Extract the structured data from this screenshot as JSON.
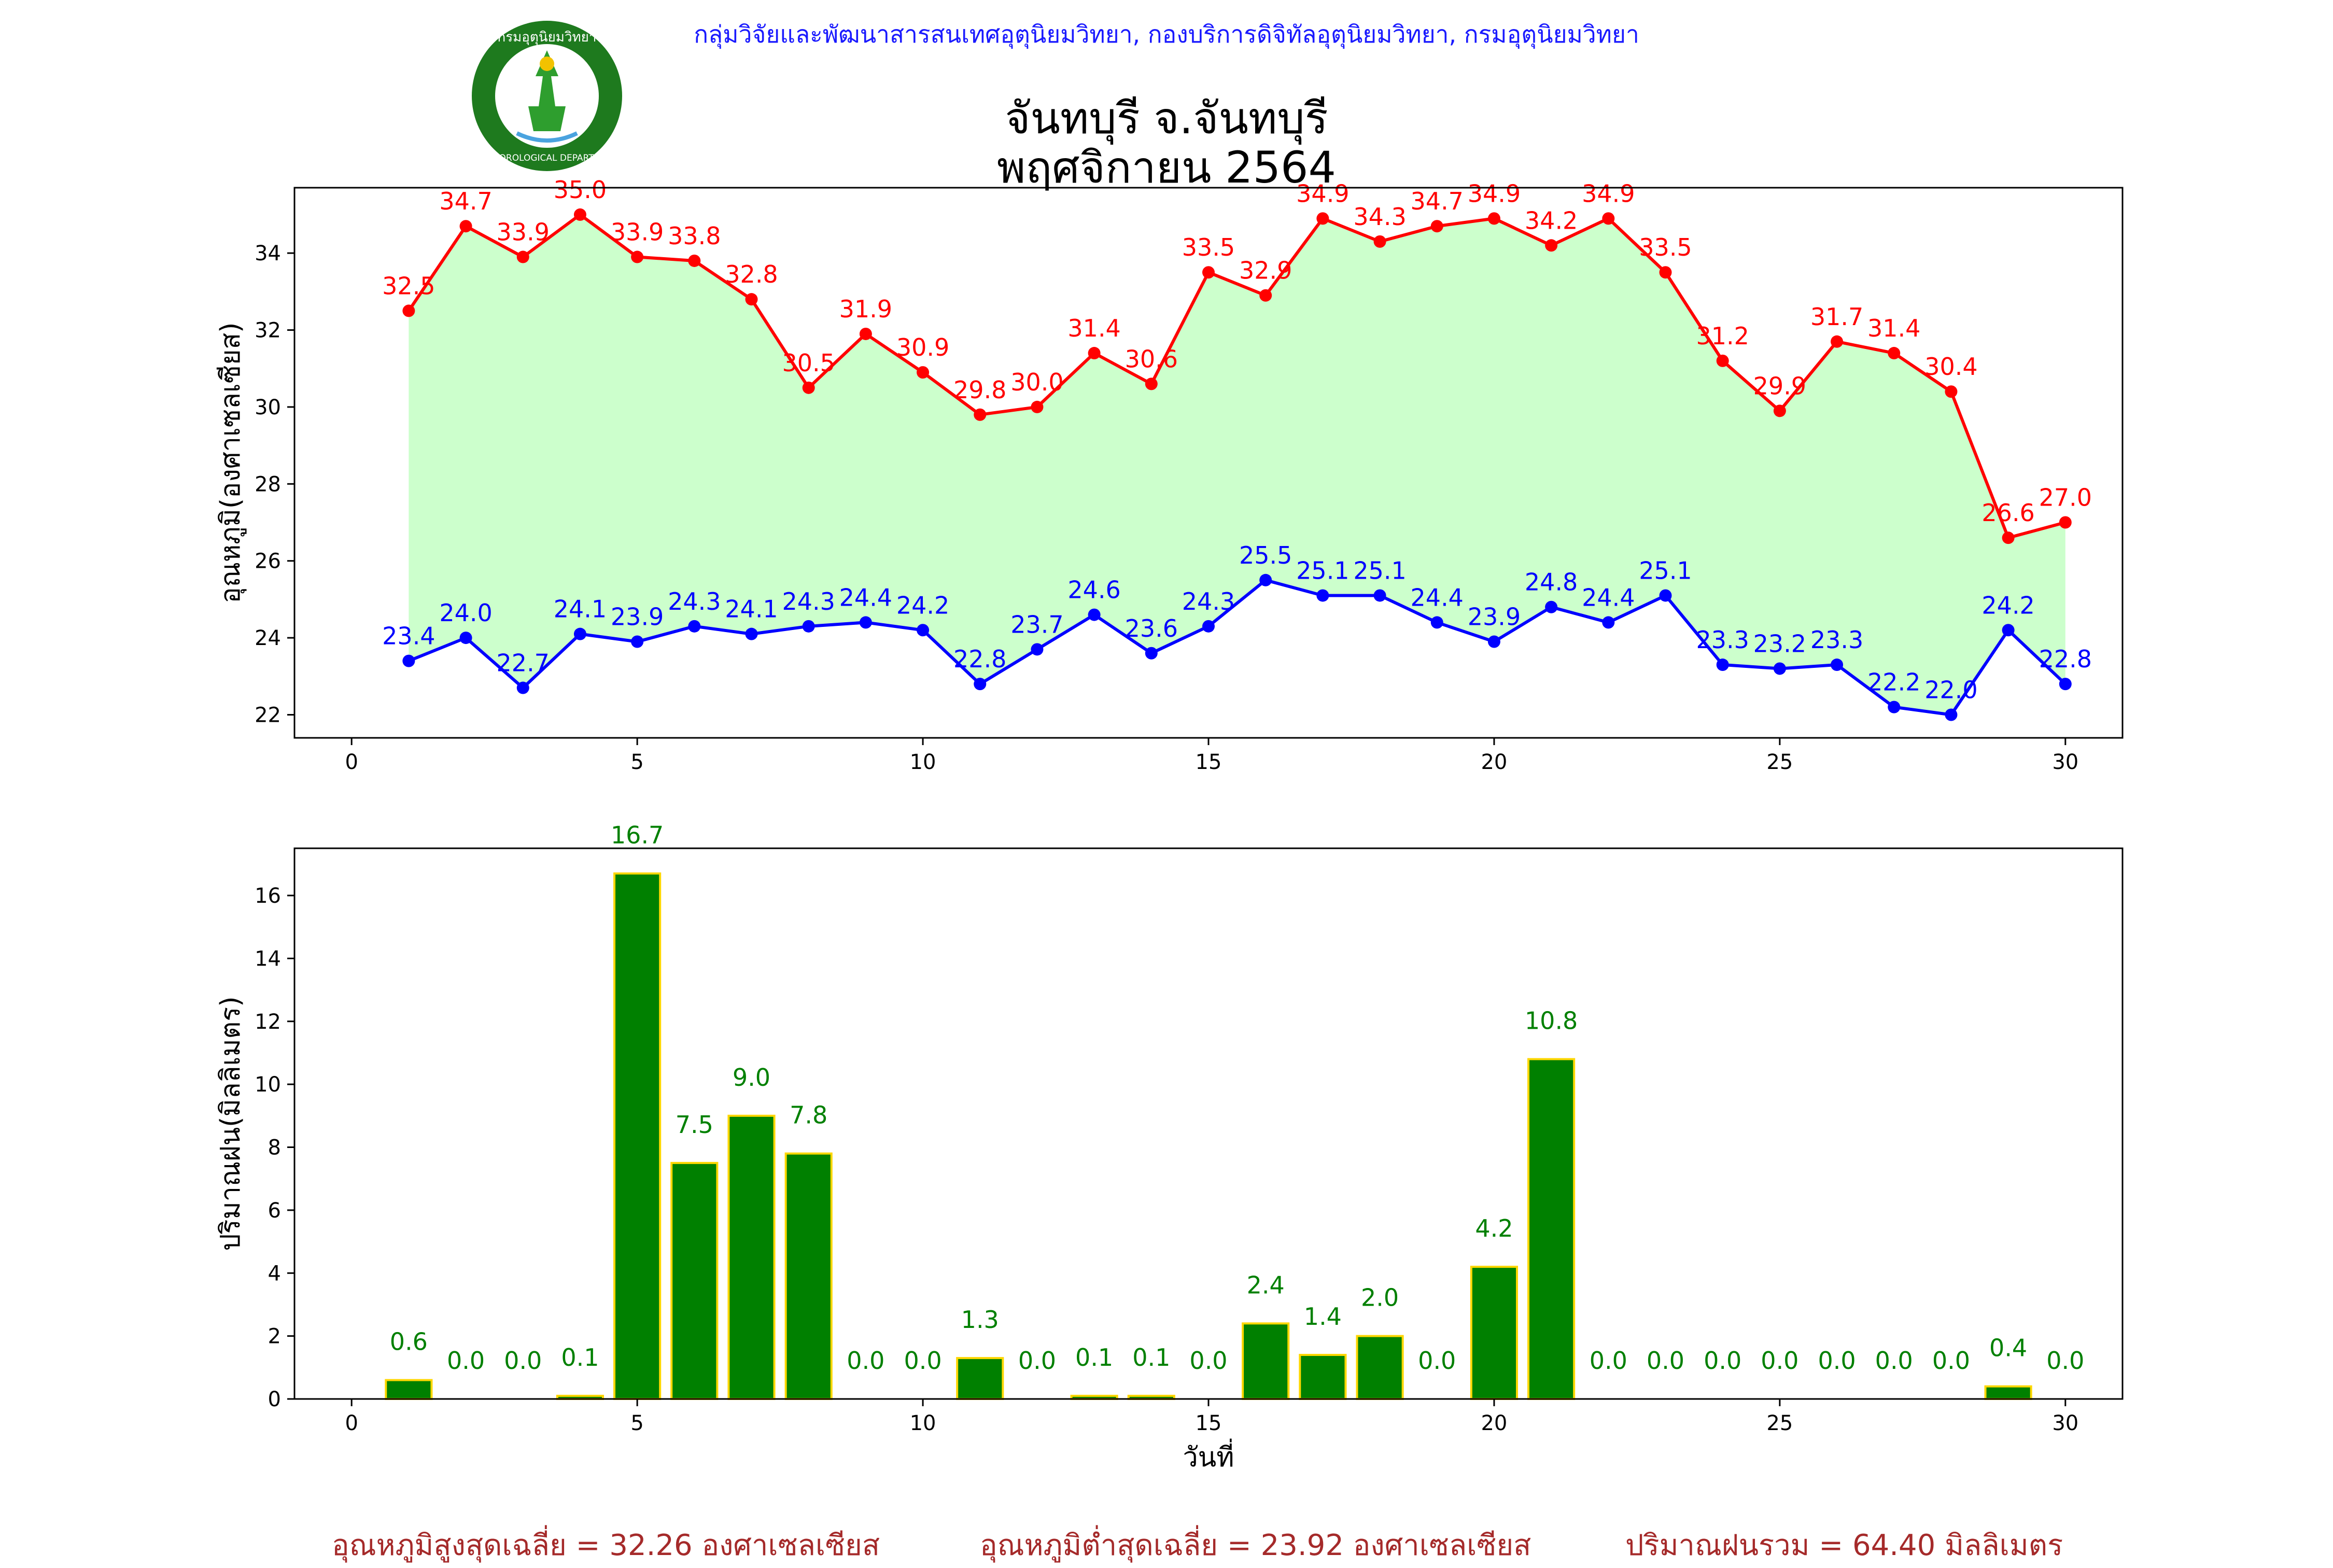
{
  "header": {
    "credit": "กลุ่มวิจัยและพัฒนาสารสนเทศอุตุนิยมวิทยา, กองบริการดิจิทัลอุตุนิยมวิทยา, กรมอุตุนิยมวิทยา",
    "title_line1": "จันทบุรี จ.จันทบุรี",
    "title_line2": "พฤศจิกายน 2564",
    "logo_text_top": "กรมอุตุนิยมวิทยา",
    "logo_text_bottom": "METEOROLOGICAL DEPARTMENT"
  },
  "colors": {
    "max_line": "#ff0000",
    "min_line": "#0000ff",
    "fill": "#ccffcc",
    "bar_fill": "#008000",
    "bar_edge": "#ffd700",
    "bar_label": "#008000",
    "footer": "#a52a2a",
    "credit": "#1a1aff"
  },
  "chart_data": [
    {
      "type": "line",
      "ylabel": "อุณหภูมิ(องศาเซลเซียส)",
      "xlim": [
        -1,
        31
      ],
      "ylim": [
        21.4,
        35.7
      ],
      "xticks": [
        0,
        5,
        10,
        15,
        20,
        25,
        30
      ],
      "yticks": [
        22,
        24,
        26,
        28,
        30,
        32,
        34
      ],
      "x": [
        1,
        2,
        3,
        4,
        5,
        6,
        7,
        8,
        9,
        10,
        11,
        12,
        13,
        14,
        15,
        16,
        17,
        18,
        19,
        20,
        21,
        22,
        23,
        24,
        25,
        26,
        27,
        28,
        29,
        30
      ],
      "series": [
        {
          "values": [
            32.5,
            34.7,
            33.9,
            35.0,
            33.9,
            33.8,
            32.8,
            30.5,
            31.9,
            30.9,
            29.8,
            30.0,
            31.4,
            30.6,
            33.5,
            32.9,
            34.9,
            34.3,
            34.7,
            34.9,
            34.2,
            34.9,
            33.5,
            31.2,
            29.9,
            31.7,
            31.4,
            30.4,
            26.6,
            27.0
          ]
        },
        {
          "values": [
            23.4,
            24.0,
            22.7,
            24.1,
            23.9,
            24.3,
            24.1,
            24.3,
            24.4,
            24.2,
            22.8,
            23.7,
            24.6,
            23.6,
            24.3,
            25.5,
            25.1,
            25.1,
            24.4,
            23.9,
            24.8,
            24.4,
            25.1,
            23.3,
            23.2,
            23.3,
            22.2,
            22.0,
            24.2,
            22.8
          ]
        }
      ]
    },
    {
      "type": "bar",
      "xlabel": "วันที่",
      "ylabel": "ปริมาณฝน(มิลลิเมตร)",
      "xlim": [
        -1,
        31
      ],
      "ylim": [
        0,
        17.5
      ],
      "xticks": [
        0,
        5,
        10,
        15,
        20,
        25,
        30
      ],
      "yticks": [
        0,
        2,
        4,
        6,
        8,
        10,
        12,
        14,
        16
      ],
      "x": [
        1,
        2,
        3,
        4,
        5,
        6,
        7,
        8,
        9,
        10,
        11,
        12,
        13,
        14,
        15,
        16,
        17,
        18,
        19,
        20,
        21,
        22,
        23,
        24,
        25,
        26,
        27,
        28,
        29,
        30
      ],
      "values": [
        0.6,
        0.0,
        0.0,
        0.1,
        16.7,
        7.5,
        9.0,
        7.8,
        0.0,
        0.0,
        1.3,
        0.0,
        0.1,
        0.1,
        0.0,
        2.4,
        1.4,
        2.0,
        0.0,
        4.2,
        10.8,
        0.0,
        0.0,
        0.0,
        0.0,
        0.0,
        0.0,
        0.0,
        0.4,
        0.0
      ]
    }
  ],
  "footer": {
    "avg_max": "อุณหภูมิสูงสุดเฉลี่ย = 32.26 องศาเซลเซียส",
    "avg_min": "อุณหภูมิต่ำสุดเฉลี่ย = 23.92 องศาเซลเซียส",
    "total_rain": "ปริมาณฝนรวม = 64.40 มิลลิเมตร"
  }
}
